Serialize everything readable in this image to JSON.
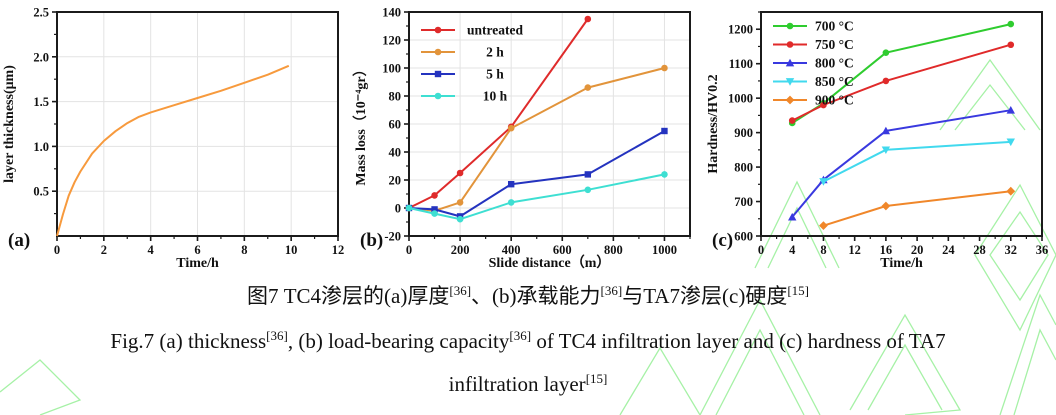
{
  "watermark_color": "#90EE90",
  "chart_data": [
    {
      "id": "a",
      "type": "line",
      "corner_label": "(a)",
      "xlabel": "Time/h",
      "ylabel": "layer thickness(μm)",
      "xlim": [
        0,
        12
      ],
      "ylim": [
        0,
        2.5
      ],
      "grid": true,
      "xticks": {
        "major": [
          0,
          2,
          4,
          6,
          8,
          10,
          12
        ],
        "labels": [
          "0",
          "2",
          "4",
          "6",
          "8",
          "10",
          "12"
        ],
        "minor": [
          1,
          3,
          5,
          7,
          9,
          11
        ]
      },
      "yticks": {
        "major": [
          0.5,
          1,
          1.5,
          2,
          2.5
        ],
        "labels": [
          "0.5",
          "1.0",
          "1.5",
          "2.0",
          "2.5"
        ],
        "minor": [
          0.25,
          0.75,
          1.25,
          1.75,
          2.25
        ]
      },
      "legend": null,
      "series": [
        {
          "name": "layer thickness",
          "color": "#F79A3D",
          "marker": "none",
          "x": [
            0,
            0.25,
            0.5,
            0.75,
            1,
            1.5,
            2,
            2.5,
            3,
            3.5,
            4,
            5,
            6,
            7,
            8,
            9,
            9.9
          ],
          "y": [
            0,
            0.24,
            0.45,
            0.6,
            0.72,
            0.92,
            1.06,
            1.17,
            1.26,
            1.33,
            1.38,
            1.46,
            1.54,
            1.62,
            1.71,
            1.8,
            1.9
          ]
        }
      ]
    },
    {
      "id": "b",
      "type": "line",
      "corner_label": "(b)",
      "xlabel": "Slide distance（m）",
      "ylabel": "Mass loss（10⁻⁴gr）",
      "xlim": [
        0,
        1100
      ],
      "ylim": [
        -20,
        140
      ],
      "grid": true,
      "xticks": {
        "major": [
          0,
          200,
          400,
          600,
          800,
          1000
        ],
        "labels": [
          "0",
          "200",
          "400",
          "600",
          "800",
          "1000"
        ],
        "minor": [
          100,
          300,
          500,
          700,
          900,
          1100
        ]
      },
      "yticks": {
        "major": [
          -20,
          0,
          20,
          40,
          60,
          80,
          100,
          120,
          140
        ],
        "labels": [
          "-20",
          "0",
          "20",
          "40",
          "60",
          "80",
          "100",
          "120",
          "140"
        ],
        "minor": [
          -10,
          10,
          30,
          50,
          70,
          90,
          110,
          130
        ]
      },
      "legend": {
        "x": 12,
        "y": 18,
        "dy": 22,
        "center": true
      },
      "series": [
        {
          "name": "untreated",
          "color": "#DF2B2B",
          "marker": "circle",
          "x": [
            0,
            100,
            200,
            400,
            700
          ],
          "y": [
            0,
            9,
            25,
            58,
            135
          ]
        },
        {
          "name": "2 h",
          "color": "#E2943B",
          "marker": "circle",
          "x": [
            0,
            100,
            200,
            400,
            700,
            1000
          ],
          "y": [
            0,
            -2,
            4,
            57,
            86,
            100
          ]
        },
        {
          "name": "5 h",
          "color": "#2433BF",
          "marker": "square",
          "x": [
            0,
            100,
            200,
            400,
            700,
            1000
          ],
          "y": [
            0,
            -1,
            -6,
            17,
            24,
            55
          ]
        },
        {
          "name": "10 h",
          "color": "#3EDFD2",
          "marker": "circle",
          "x": [
            0,
            100,
            200,
            400,
            700,
            1000
          ],
          "y": [
            0,
            -4,
            -8,
            4,
            13,
            24
          ]
        }
      ]
    },
    {
      "id": "c",
      "type": "line",
      "corner_label": "(c)",
      "xlabel": "Time/h",
      "ylabel": "Hardness/HV0.2",
      "xlim": [
        0,
        36
      ],
      "ylim": [
        600,
        1250
      ],
      "grid": false,
      "xticks": {
        "major": [
          0,
          4,
          8,
          12,
          16,
          20,
          24,
          28,
          32,
          36
        ],
        "labels": [
          "0",
          "4",
          "8",
          "12",
          "16",
          "20",
          "24",
          "28",
          "32",
          "36"
        ],
        "minor": [
          2,
          6,
          10,
          14,
          18,
          22,
          26,
          30,
          34
        ]
      },
      "yticks": {
        "major": [
          600,
          700,
          800,
          900,
          1000,
          1100,
          1200
        ],
        "labels": [
          "600",
          "700",
          "800",
          "900",
          "1000",
          "1100",
          "1200"
        ],
        "minor": [
          650,
          750,
          850,
          950,
          1050,
          1150,
          1250
        ]
      },
      "legend": {
        "x": 12,
        "y": 14,
        "dy": 18.5,
        "center": false
      },
      "series": [
        {
          "name": "700 °C",
          "color": "#2FCC2F",
          "marker": "circle",
          "x": [
            4,
            8,
            16,
            32
          ],
          "y": [
            928,
            985,
            1132,
            1215
          ]
        },
        {
          "name": "750 °C",
          "color": "#E02A2A",
          "marker": "circle",
          "x": [
            4,
            8,
            16,
            32
          ],
          "y": [
            935,
            980,
            1050,
            1155
          ]
        },
        {
          "name": "800 °C",
          "color": "#3939DF",
          "marker": "triangle-up",
          "x": [
            4,
            8,
            16,
            32
          ],
          "y": [
            655,
            763,
            905,
            965
          ]
        },
        {
          "name": "850 °C",
          "color": "#41D9EE",
          "marker": "triangle-down",
          "x": [
            8,
            16,
            32
          ],
          "y": [
            758,
            850,
            873
          ]
        },
        {
          "name": "900 °C",
          "color": "#F0872A",
          "marker": "diamond",
          "x": [
            8,
            16,
            32
          ],
          "y": [
            630,
            687,
            730
          ]
        }
      ]
    }
  ],
  "captions": {
    "cn": [
      {
        "t": "图7 TC4渗层的(a)厚度"
      },
      {
        "sup": "[36]"
      },
      {
        "t": "、(b)承载能力"
      },
      {
        "sup": "[36]"
      },
      {
        "t": "与TA7渗层(c)硬度"
      },
      {
        "sup": "[15]"
      }
    ],
    "en1": [
      {
        "t": "Fig.7 (a) thickness"
      },
      {
        "sup": "[36]"
      },
      {
        "t": ", (b) load-bearing capacity"
      },
      {
        "sup": "[36]"
      },
      {
        "t": " of TC4 infiltration layer and (c) hardness of TA7"
      }
    ],
    "en2": [
      {
        "t": "infiltration layer"
      },
      {
        "sup": "[15]"
      }
    ]
  }
}
